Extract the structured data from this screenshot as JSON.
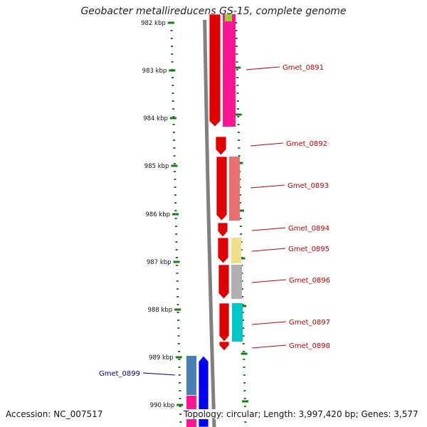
{
  "title": "Geobacter metallireducens GS-15, complete genome",
  "footer": {
    "accession": "Accession: NC_007517",
    "summary": "Topology: circular; Length: 3,997,420 bp; Genes: 3,577"
  },
  "colors": {
    "backbone": "#808080",
    "tick": "#1a7a1a",
    "gene_label_forward": "#c00000",
    "gene_label_reverse": "#00008b"
  },
  "scale": {
    "unit": "kbp",
    "tick_labels": [
      "982 kbp",
      "983 kbp",
      "984 kbp",
      "985 kbp",
      "986 kbp",
      "987 kbp",
      "988 kbp",
      "989 kbp",
      "990 kbp"
    ]
  },
  "genes": [
    {
      "label": "Gmet_0891",
      "color": "#e00000",
      "partner_color": "#ff1493",
      "strand": "forward"
    },
    {
      "label": "Gmet_0892",
      "color": "#e00000",
      "partner_color": "",
      "strand": "forward"
    },
    {
      "label": "Gmet_0893",
      "color": "#e00000",
      "partner_color": "#e87272",
      "strand": "forward"
    },
    {
      "label": "Gmet_0894",
      "color": "#e00000",
      "partner_color": "",
      "strand": "forward"
    },
    {
      "label": "Gmet_0895",
      "color": "#e00000",
      "partner_color": "#f2df8c",
      "strand": "forward"
    },
    {
      "label": "Gmet_0896",
      "color": "#e00000",
      "partner_color": "#b0b0b0",
      "strand": "forward"
    },
    {
      "label": "Gmet_0897",
      "color": "#e00000",
      "partner_color": "#00c8c8",
      "strand": "forward"
    },
    {
      "label": "Gmet_0898",
      "color": "#e00000",
      "partner_color": "",
      "strand": "forward"
    },
    {
      "label": "Gmet_0899",
      "color": "#0000ff",
      "partner_color": "#4a7fb5",
      "strand": "reverse"
    }
  ]
}
